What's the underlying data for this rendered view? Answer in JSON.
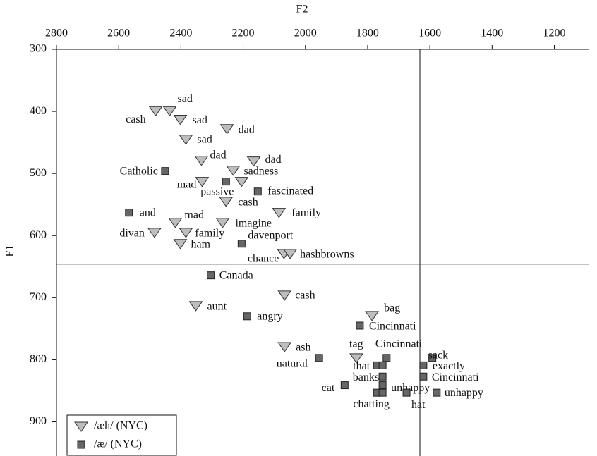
{
  "chart_data": {
    "type": "scatter",
    "xlabel": "F2",
    "ylabel": "F1",
    "xlim": [
      2800,
      1090
    ],
    "ylim": [
      300,
      955
    ],
    "xticks": [
      2800,
      2600,
      2400,
      2200,
      2000,
      1800,
      1600,
      1400,
      1200
    ],
    "yticks": [
      300,
      400,
      500,
      600,
      700,
      800,
      900
    ],
    "x_axis_position": "top",
    "y_inverted": true,
    "x_inverted": true,
    "vlines": [
      1632
    ],
    "hlines": [
      646
    ],
    "legend": "lower left",
    "series": [
      {
        "name": "/æh/ (NYC)",
        "marker": "triangle-down",
        "color": "#bdbdbd",
        "x": [
          2481,
          2436,
          2402,
          2384,
          2252,
          2334,
          2166,
          2232,
          2332,
          2205,
          2255,
          2085,
          2418,
          2266,
          2485,
          2384,
          2402,
          2069,
          2049,
          2067,
          2352,
          1786,
          2067,
          1836
        ],
        "values": [
          399,
          399,
          413,
          445,
          428,
          479,
          480,
          495,
          513,
          513,
          545,
          563,
          579,
          579,
          595,
          595,
          613,
          629,
          629,
          696,
          713,
          729,
          779,
          797
        ],
        "labels": [
          "cash",
          "sad",
          "sad",
          "sad",
          "dad",
          "dad",
          "dad",
          "sadness",
          "mad",
          null,
          "cash",
          "family",
          "mad",
          "imagine",
          "divan",
          "family",
          "ham",
          "chance",
          "hashbrowns",
          "cash",
          "aunt",
          "bag",
          "ash",
          "tag"
        ]
      },
      {
        "name": "/æ/ (NYC)",
        "marker": "square",
        "color": "#666666",
        "x": [
          2451,
          2255,
          2153,
          2567,
          2205,
          2304,
          2187,
          1825,
          1956,
          1739,
          1592,
          1770,
          1752,
          1621,
          1752,
          1621,
          1752,
          1874,
          1770,
          1752,
          1675,
          1578
        ],
        "values": [
          496,
          513,
          529,
          563,
          613,
          664,
          730,
          745,
          797,
          797,
          797,
          809,
          809,
          809,
          827,
          827,
          841,
          841,
          853,
          853,
          853,
          853
        ],
        "labels": [
          "Catholic",
          "passive",
          "fascinated",
          "and",
          "davenport",
          "Canada",
          "angry",
          "Cincinnati",
          "natural",
          "Cincinnati",
          "sack",
          "that",
          null,
          "exactly",
          "banks",
          "Cincinnati",
          "unhappy",
          "cat",
          "chatting",
          null,
          "hat",
          "unhappy"
        ]
      }
    ]
  }
}
